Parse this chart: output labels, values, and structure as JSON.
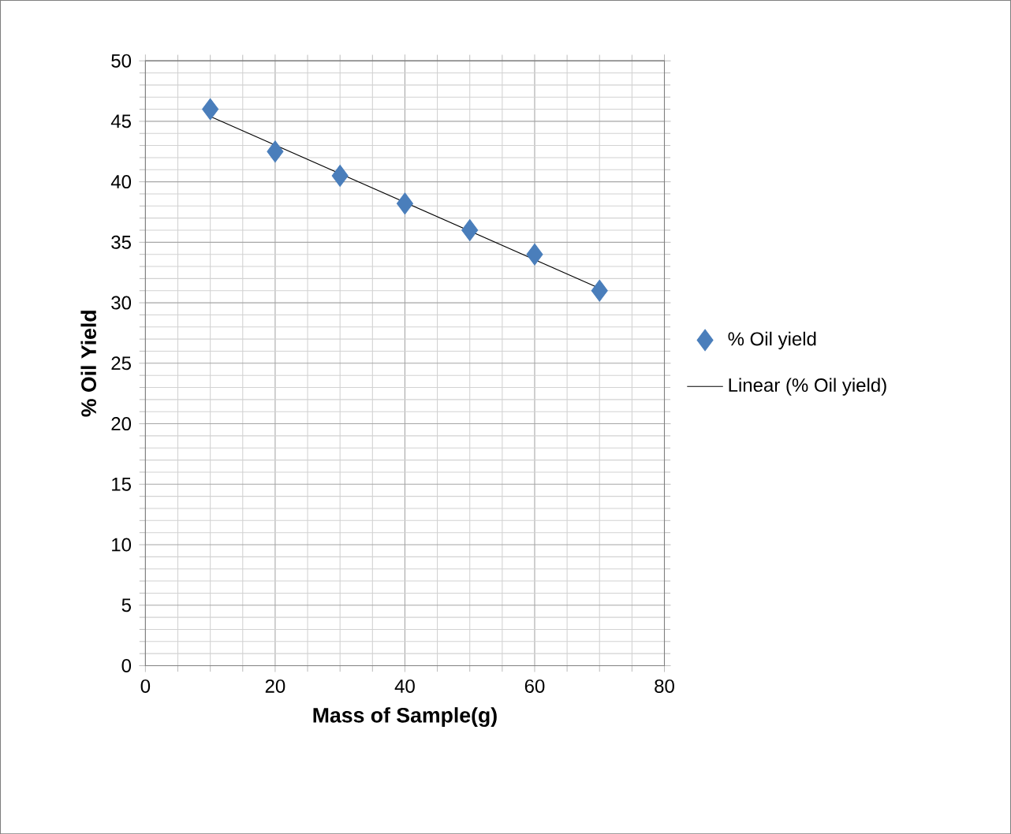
{
  "chart_data": {
    "type": "scatter",
    "xlabel": "Mass of Sample(g)",
    "ylabel": "% Oil Yield",
    "xlim": [
      0,
      80
    ],
    "xticks": [
      0,
      20,
      40,
      60,
      80
    ],
    "ylim": [
      0,
      50
    ],
    "yticks": [
      0,
      5,
      10,
      15,
      20,
      25,
      30,
      35,
      40,
      45,
      50
    ],
    "grid": true,
    "legend": "right",
    "marker": "diamond",
    "series": [
      {
        "name": "% Oil yield",
        "color": "#4a7ebb",
        "x": [
          10,
          20,
          30,
          40,
          50,
          60,
          70
        ],
        "values": [
          46,
          42.5,
          40.5,
          38.2,
          36,
          34,
          31
        ]
      },
      {
        "name": "Linear (% Oil yield)",
        "type": "line",
        "marker": "none",
        "color": "#000000",
        "x": [
          10,
          70
        ],
        "values": [
          45.4,
          31.2
        ]
      }
    ]
  }
}
